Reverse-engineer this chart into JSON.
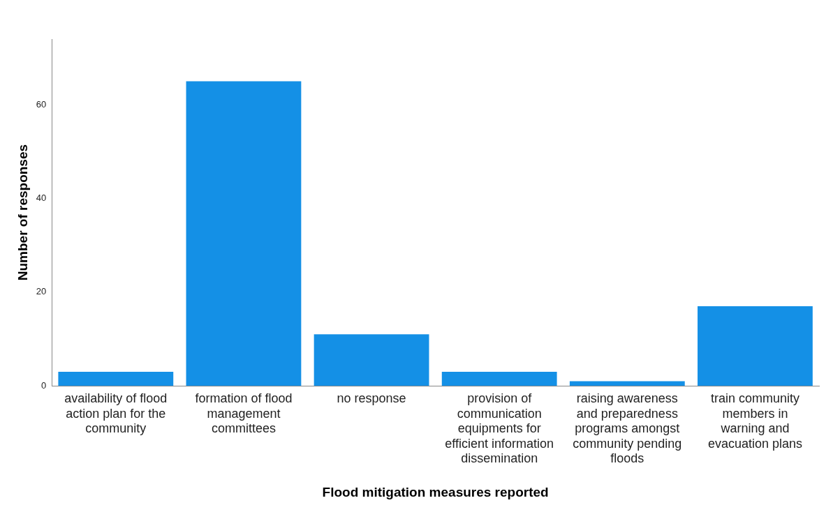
{
  "chart_data": {
    "type": "bar",
    "xlabel": "Flood mitigation measures reported",
    "ylabel": "Number of responses",
    "categories": [
      "availability of flood action plan for the community",
      "formation of flood management committees",
      "no response",
      "provision of communication equipments for efficient information dissemination",
      "raising awareness and preparedness programs amongst community pending floods",
      "train community members in warning and evacuation plans"
    ],
    "values": [
      3,
      65,
      11,
      3,
      1,
      17
    ],
    "color": "#1490e6",
    "ylim": [
      0,
      74
    ],
    "yticks": [
      0,
      20,
      40,
      60
    ],
    "grid": false,
    "legend": false
  }
}
